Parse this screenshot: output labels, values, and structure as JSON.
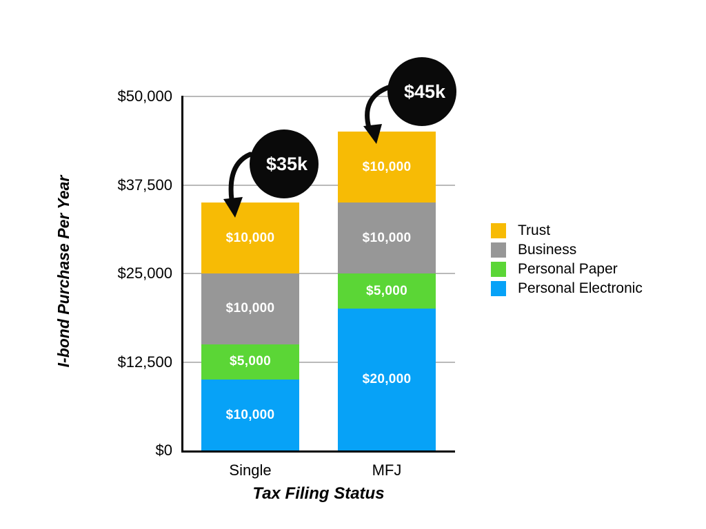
{
  "chart_data": {
    "type": "bar",
    "subtype": "stacked",
    "title": "",
    "xlabel": "Tax Filing Status",
    "ylabel": "I-bond Purchase Per Year",
    "categories": [
      "Single",
      "MFJ"
    ],
    "series": [
      {
        "name": "Personal Electronic",
        "color": "#07A2F7",
        "values": [
          10000,
          20000
        ],
        "labels": [
          "$10,000",
          "$20,000"
        ]
      },
      {
        "name": "Personal Paper",
        "color": "#5BD636",
        "values": [
          5000,
          5000
        ],
        "labels": [
          "$5,000",
          "$5,000"
        ]
      },
      {
        "name": "Business",
        "color": "#979797",
        "values": [
          10000,
          10000
        ],
        "labels": [
          "$10,000",
          "$10,000"
        ]
      },
      {
        "name": "Trust",
        "color": "#F7BB05",
        "values": [
          10000,
          10000
        ],
        "labels": [
          "$10,000",
          "$10,000"
        ]
      }
    ],
    "totals": [
      35000,
      45000
    ],
    "callouts": [
      {
        "label": "$35k",
        "category": "Single",
        "total": 35000
      },
      {
        "label": "$45k",
        "category": "MFJ",
        "total": 45000
      }
    ],
    "yticks": [
      {
        "value": 0,
        "label": "$0"
      },
      {
        "value": 12500,
        "label": "$12,500"
      },
      {
        "value": 25000,
        "label": "$25,000"
      },
      {
        "value": 37500,
        "label": "$37,500"
      },
      {
        "value": 50000,
        "label": "$50,000"
      }
    ],
    "ylim": [
      0,
      50000
    ],
    "grid": true,
    "legend_position": "right"
  },
  "legend": {
    "items": [
      {
        "label": "Trust",
        "color": "#F7BB05"
      },
      {
        "label": "Business",
        "color": "#979797"
      },
      {
        "label": "Personal Paper",
        "color": "#5BD636"
      },
      {
        "label": "Personal Electronic",
        "color": "#07A2F7"
      }
    ]
  },
  "colors": {
    "background": "#FFFFFF",
    "gridline": "#B9B9B9",
    "axis": "#000000",
    "callout_background": "#0A0A0A",
    "callout_text": "#FFFFFF",
    "segment_label_text": "#FFFFFF"
  }
}
